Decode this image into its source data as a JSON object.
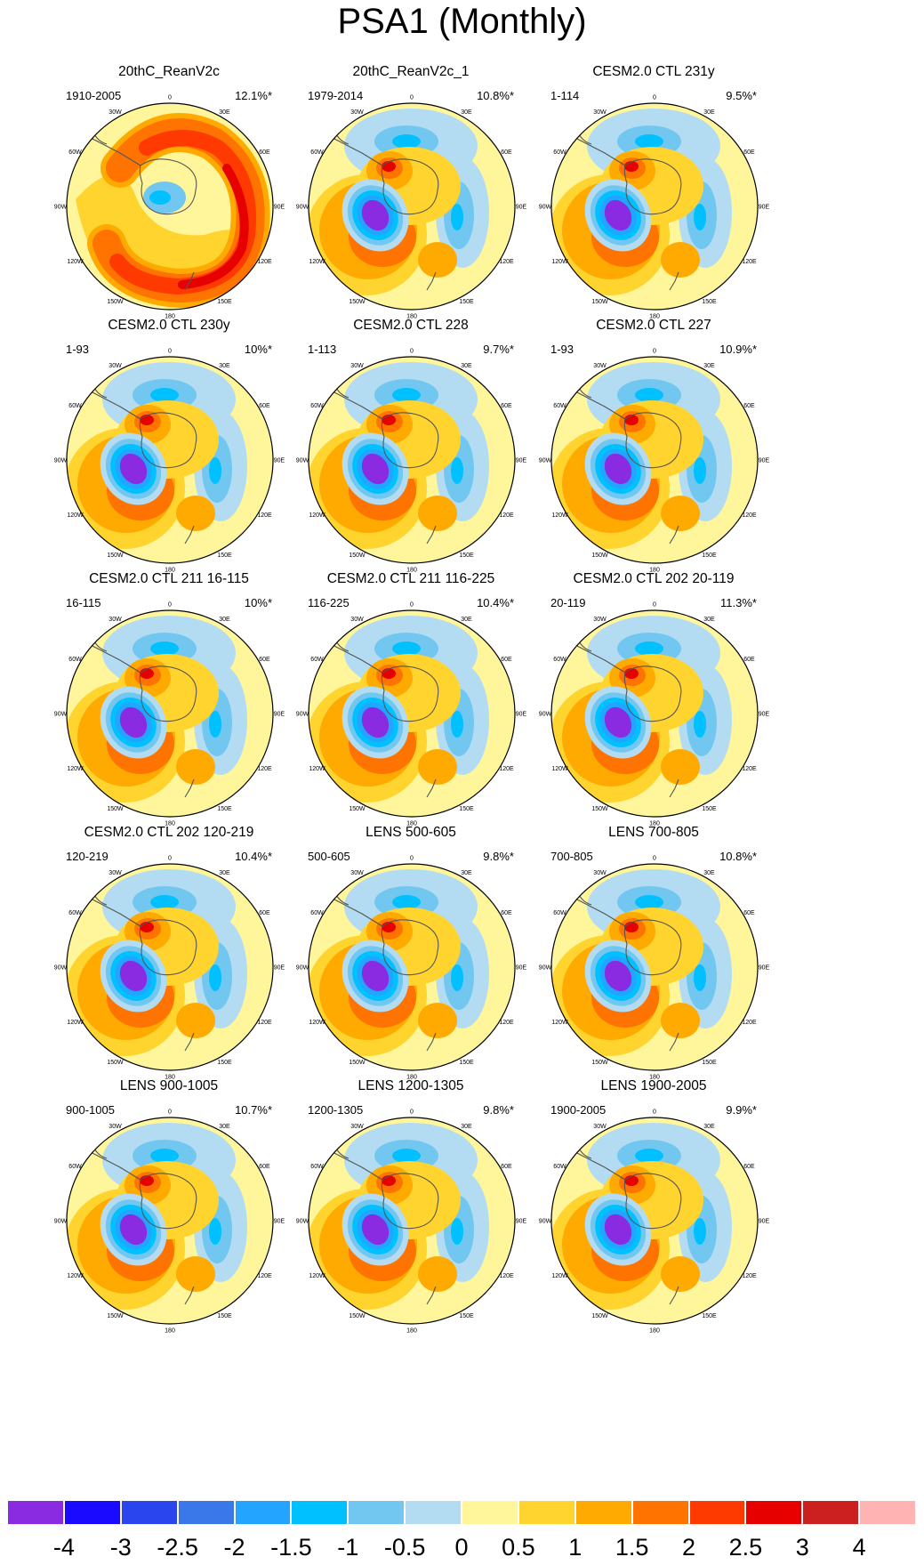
{
  "title": "PSA1 (Monthly)",
  "map": {
    "type": "south-polar-stereographic",
    "lon_labels": [
      "0",
      "30E",
      "60E",
      "90E",
      "120E",
      "150E",
      "180",
      "150W",
      "120W",
      "90W",
      "60W",
      "30W"
    ]
  },
  "colorbar": {
    "levels": [
      "-4",
      "-3",
      "-2.5",
      "-2",
      "-1.5",
      "-1",
      "-0.5",
      "0",
      "0.5",
      "1",
      "1.5",
      "2",
      "2.5",
      "3",
      "4"
    ],
    "colors": [
      "#8a2be2",
      "#1a0aff",
      "#2a45ee",
      "#3a78ea",
      "#22a4ff",
      "#00c0ff",
      "#72c7f0",
      "#b3dcf3",
      "#fff59a",
      "#ffd42e",
      "#ffaa00",
      "#ff7300",
      "#ff3a00",
      "#e60000",
      "#cc2020",
      "#ffb4b4"
    ]
  },
  "panels": [
    {
      "title": "20thC_ReanV2c",
      "period": "1910-2005",
      "percent": "12.1%*",
      "pattern": "ring"
    },
    {
      "title": "20thC_ReanV2c_1",
      "period": "1979-2014",
      "percent": "10.8%*",
      "pattern": "dipole"
    },
    {
      "title": "CESM2.0 CTL 231y",
      "period": "1-114",
      "percent": "9.5%*",
      "pattern": "dipole"
    },
    {
      "title": "CESM2.0 CTL 230y",
      "period": "1-93",
      "percent": "10%*",
      "pattern": "dipole"
    },
    {
      "title": "CESM2.0 CTL 228",
      "period": "1-113",
      "percent": "9.7%*",
      "pattern": "dipole"
    },
    {
      "title": "CESM2.0 CTL 227",
      "period": "1-93",
      "percent": "10.9%*",
      "pattern": "dipole"
    },
    {
      "title": "CESM2.0 CTL 211 16-115",
      "period": "16-115",
      "percent": "10%*",
      "pattern": "dipole"
    },
    {
      "title": "CESM2.0 CTL 211 116-225",
      "period": "116-225",
      "percent": "10.4%*",
      "pattern": "dipole"
    },
    {
      "title": "CESM2.0 CTL 202 20-119",
      "period": "20-119",
      "percent": "11.3%*",
      "pattern": "dipole"
    },
    {
      "title": "CESM2.0 CTL 202 120-219",
      "period": "120-219",
      "percent": "10.4%*",
      "pattern": "dipole"
    },
    {
      "title": "LENS 500-605",
      "period": "500-605",
      "percent": "9.8%*",
      "pattern": "dipole"
    },
    {
      "title": "LENS 700-805",
      "period": "700-805",
      "percent": "10.8%*",
      "pattern": "dipole"
    },
    {
      "title": "LENS 900-1005",
      "period": "900-1005",
      "percent": "10.7%*",
      "pattern": "dipole"
    },
    {
      "title": "LENS 1200-1305",
      "period": "1200-1305",
      "percent": "9.8%*",
      "pattern": "dipole"
    },
    {
      "title": "LENS 1900-2005",
      "period": "1900-2005",
      "percent": "9.9%*",
      "pattern": "dipole"
    }
  ]
}
